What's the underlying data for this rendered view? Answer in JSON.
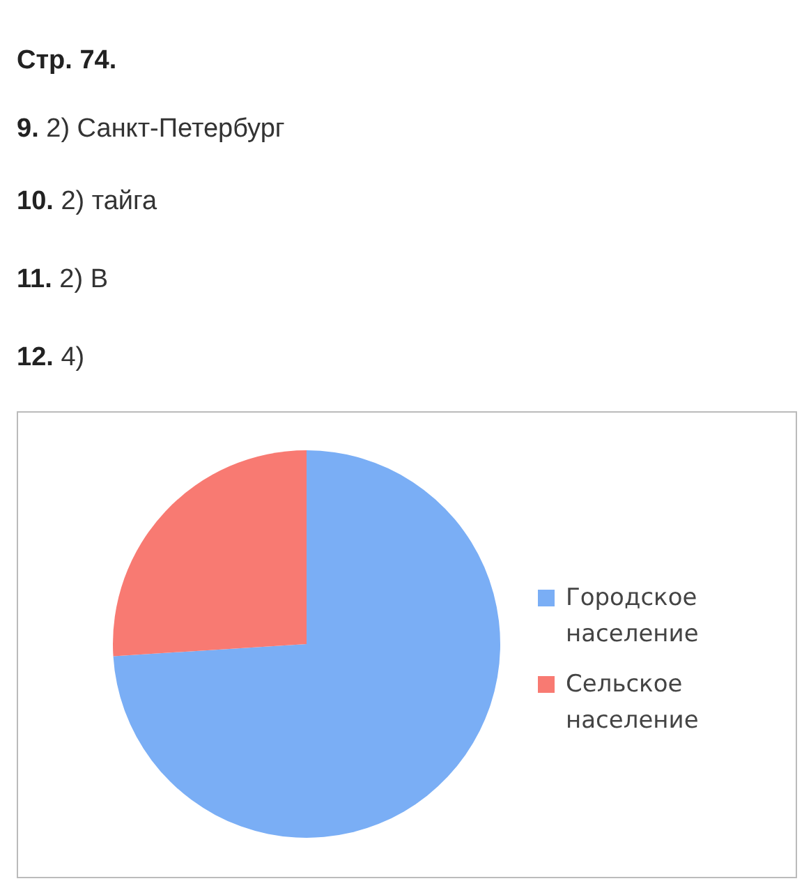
{
  "chart_data": {
    "type": "pie",
    "title": "Стр. 74.",
    "annotations": [
      "9. 2) Санкт-Петербург",
      "10. 2) тайга",
      "11. 2) В",
      "12. 4)"
    ],
    "categories": [
      "Городское население",
      "Сельское население"
    ],
    "values": [
      74,
      26
    ],
    "colors": [
      "#7aaef5",
      "#f87a72"
    ],
    "legend": "right"
  }
}
